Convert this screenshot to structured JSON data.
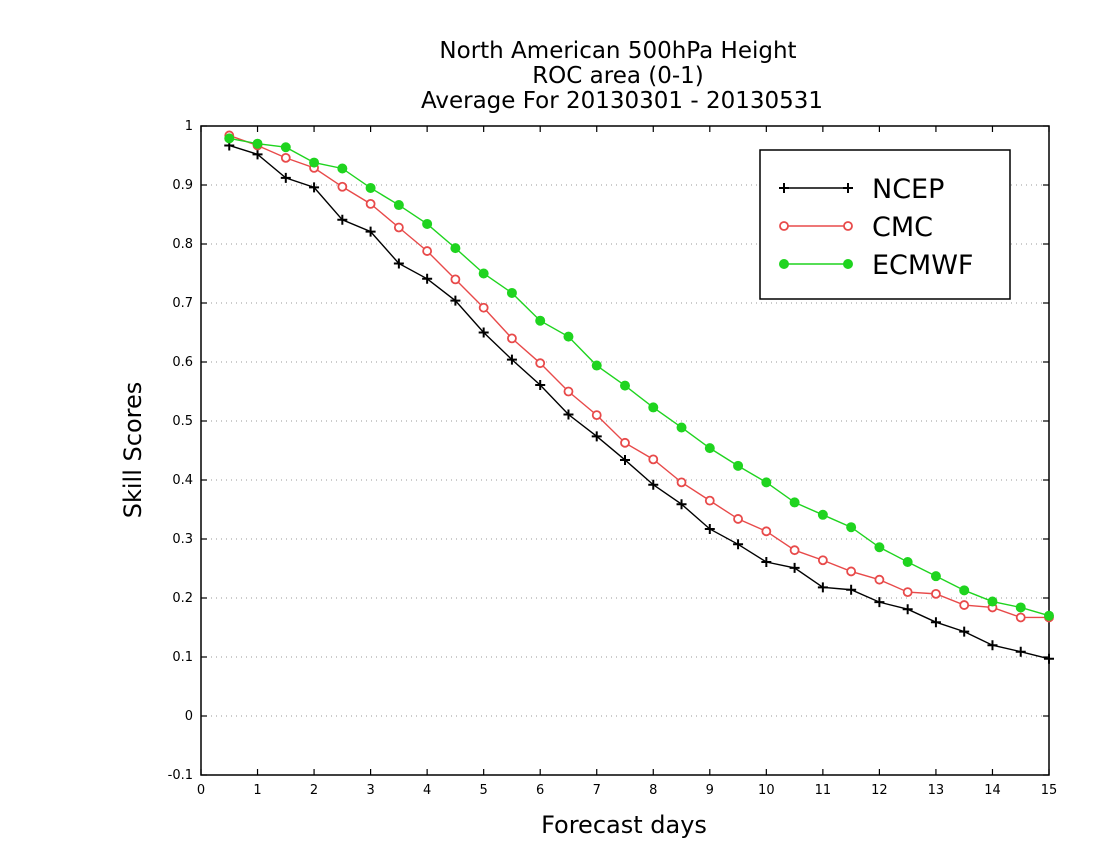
{
  "chart_data": {
    "type": "line",
    "title": [
      "North American 500hPa Height",
      "ROC area (0-1)",
      "Average For 20130301 - 20130531"
    ],
    "xlabel": "Forecast days",
    "ylabel": "Skill Scores",
    "xlim": [
      0,
      15
    ],
    "ylim": [
      -0.1,
      1
    ],
    "xticks": [
      "0",
      "1",
      "2",
      "3",
      "4",
      "5",
      "6",
      "7",
      "8",
      "9",
      "10",
      "11",
      "12",
      "13",
      "14",
      "15"
    ],
    "yticks": [
      "-0.1",
      "0",
      "0.1",
      "0.2",
      "0.3",
      "0.4",
      "0.5",
      "0.6",
      "0.7",
      "0.8",
      "0.9",
      "1"
    ],
    "grid": "horizontal dotted",
    "legend_position": "top-right",
    "x": [
      0.5,
      1,
      1.5,
      2,
      2.5,
      3,
      3.5,
      4,
      4.5,
      5,
      5.5,
      6,
      6.5,
      7,
      7.5,
      8,
      8.5,
      9,
      9.5,
      10,
      10.5,
      11,
      11.5,
      12,
      12.5,
      13,
      13.5,
      14,
      14.5,
      15
    ],
    "series": [
      {
        "name": "NCEP",
        "color": "#000000",
        "marker": "plus",
        "values": [
          0.967,
          0.952,
          0.912,
          0.896,
          0.841,
          0.821,
          0.767,
          0.741,
          0.704,
          0.65,
          0.604,
          0.561,
          0.511,
          0.474,
          0.434,
          0.392,
          0.359,
          0.317,
          0.291,
          0.261,
          0.251,
          0.218,
          0.214,
          0.193,
          0.181,
          0.159,
          0.143,
          0.12,
          0.109,
          0.097
        ]
      },
      {
        "name": "CMC",
        "color": "#e84a4a",
        "marker": "open-circle",
        "values": [
          0.984,
          0.967,
          0.946,
          0.929,
          0.897,
          0.868,
          0.828,
          0.788,
          0.74,
          0.692,
          0.64,
          0.598,
          0.55,
          0.51,
          0.463,
          0.435,
          0.396,
          0.365,
          0.334,
          0.313,
          0.281,
          0.264,
          0.245,
          0.231,
          0.21,
          0.207,
          0.188,
          0.184,
          0.167,
          0.167
        ]
      },
      {
        "name": "ECMWF",
        "color": "#1fd41f",
        "marker": "filled-circle",
        "values": [
          0.979,
          0.97,
          0.964,
          0.938,
          0.928,
          0.895,
          0.866,
          0.834,
          0.793,
          0.75,
          0.717,
          0.67,
          0.643,
          0.594,
          0.56,
          0.523,
          0.489,
          0.454,
          0.424,
          0.396,
          0.362,
          0.341,
          0.32,
          0.286,
          0.261,
          0.237,
          0.213,
          0.194,
          0.184,
          0.17
        ]
      }
    ]
  }
}
